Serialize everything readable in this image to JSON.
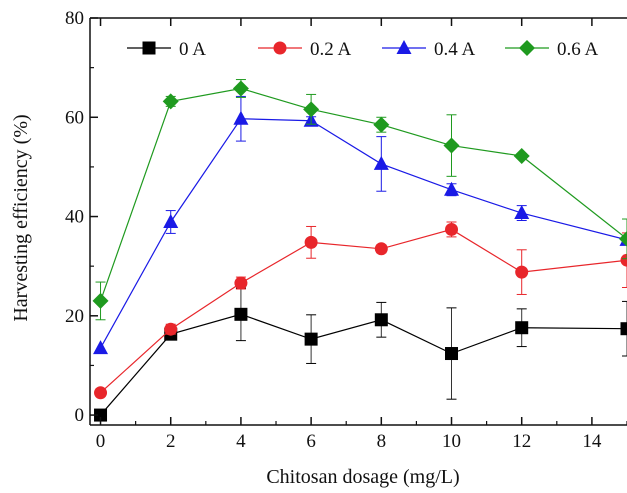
{
  "chart_data": {
    "type": "line",
    "xlabel": "Chitosan dosage (mg/L)",
    "ylabel": "Harvesting efficiency (%)",
    "xlim": [
      -0.3,
      15
    ],
    "ylim": [
      -2,
      80
    ],
    "x_ticks": [
      0,
      2,
      4,
      6,
      8,
      10,
      12,
      14
    ],
    "y_ticks": [
      0,
      20,
      40,
      60,
      80
    ],
    "grid": false,
    "legend_position": "top",
    "x": [
      0,
      2,
      4,
      6,
      8,
      10,
      12,
      15
    ],
    "series": [
      {
        "name": "0 A",
        "color": "#000000",
        "marker": "square",
        "values": [
          0,
          16.3,
          20.3,
          15.3,
          19.2,
          12.4,
          17.6,
          17.4
        ],
        "errors": [
          0,
          1,
          5.3,
          4.9,
          3.5,
          9.2,
          3.8,
          5.5
        ]
      },
      {
        "name": "0.2 A",
        "color": "#e8262b",
        "marker": "circle",
        "values": [
          4.5,
          17.3,
          26.6,
          34.8,
          33.5,
          37.4,
          28.8,
          31.2
        ],
        "errors": [
          0,
          1,
          1.2,
          3.2,
          0.8,
          1.5,
          4.5,
          5.5
        ]
      },
      {
        "name": "0.4 A",
        "color": "#1a1ae6",
        "marker": "triangle",
        "values": [
          13.5,
          38.9,
          59.7,
          59.3,
          50.6,
          45.4,
          40.7,
          35.3
        ],
        "errors": [
          0,
          2.3,
          4.5,
          0.8,
          5.5,
          1.2,
          1.5,
          0
        ]
      },
      {
        "name": "0.6 A",
        "color": "#1f9a1f",
        "marker": "diamond",
        "values": [
          23.0,
          63.2,
          65.8,
          61.6,
          58.5,
          54.3,
          52.2,
          35.5
        ],
        "errors": [
          3.8,
          1.0,
          1.8,
          3.0,
          1.5,
          6.2,
          0.5,
          4.0
        ]
      }
    ]
  }
}
